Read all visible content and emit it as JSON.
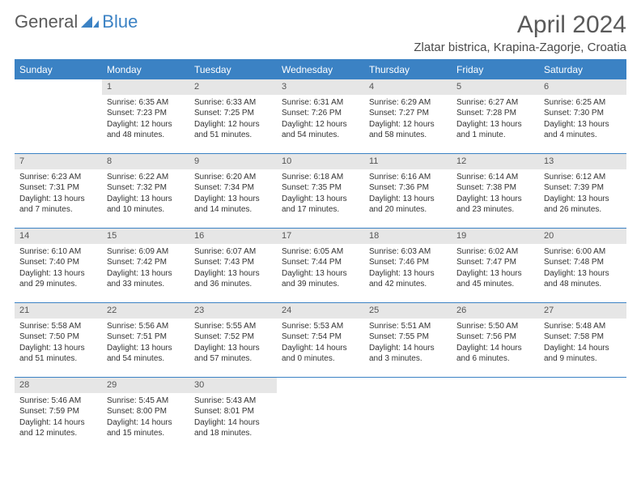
{
  "logo": {
    "part1": "General",
    "part2": "Blue"
  },
  "title": "April 2024",
  "location": "Zlatar bistrica, Krapina-Zagorje, Croatia",
  "colors": {
    "header_bg": "#3b82c4",
    "header_text": "#ffffff",
    "daynum_bg": "#e6e6e6",
    "border": "#3b82c4",
    "body_text": "#333333",
    "logo_gray": "#5a5a5a"
  },
  "weekdays": [
    "Sunday",
    "Monday",
    "Tuesday",
    "Wednesday",
    "Thursday",
    "Friday",
    "Saturday"
  ],
  "start_offset": 1,
  "days": [
    {
      "n": 1,
      "sunrise": "6:35 AM",
      "sunset": "7:23 PM",
      "daylight": "12 hours and 48 minutes."
    },
    {
      "n": 2,
      "sunrise": "6:33 AM",
      "sunset": "7:25 PM",
      "daylight": "12 hours and 51 minutes."
    },
    {
      "n": 3,
      "sunrise": "6:31 AM",
      "sunset": "7:26 PM",
      "daylight": "12 hours and 54 minutes."
    },
    {
      "n": 4,
      "sunrise": "6:29 AM",
      "sunset": "7:27 PM",
      "daylight": "12 hours and 58 minutes."
    },
    {
      "n": 5,
      "sunrise": "6:27 AM",
      "sunset": "7:28 PM",
      "daylight": "13 hours and 1 minute."
    },
    {
      "n": 6,
      "sunrise": "6:25 AM",
      "sunset": "7:30 PM",
      "daylight": "13 hours and 4 minutes."
    },
    {
      "n": 7,
      "sunrise": "6:23 AM",
      "sunset": "7:31 PM",
      "daylight": "13 hours and 7 minutes."
    },
    {
      "n": 8,
      "sunrise": "6:22 AM",
      "sunset": "7:32 PM",
      "daylight": "13 hours and 10 minutes."
    },
    {
      "n": 9,
      "sunrise": "6:20 AM",
      "sunset": "7:34 PM",
      "daylight": "13 hours and 14 minutes."
    },
    {
      "n": 10,
      "sunrise": "6:18 AM",
      "sunset": "7:35 PM",
      "daylight": "13 hours and 17 minutes."
    },
    {
      "n": 11,
      "sunrise": "6:16 AM",
      "sunset": "7:36 PM",
      "daylight": "13 hours and 20 minutes."
    },
    {
      "n": 12,
      "sunrise": "6:14 AM",
      "sunset": "7:38 PM",
      "daylight": "13 hours and 23 minutes."
    },
    {
      "n": 13,
      "sunrise": "6:12 AM",
      "sunset": "7:39 PM",
      "daylight": "13 hours and 26 minutes."
    },
    {
      "n": 14,
      "sunrise": "6:10 AM",
      "sunset": "7:40 PM",
      "daylight": "13 hours and 29 minutes."
    },
    {
      "n": 15,
      "sunrise": "6:09 AM",
      "sunset": "7:42 PM",
      "daylight": "13 hours and 33 minutes."
    },
    {
      "n": 16,
      "sunrise": "6:07 AM",
      "sunset": "7:43 PM",
      "daylight": "13 hours and 36 minutes."
    },
    {
      "n": 17,
      "sunrise": "6:05 AM",
      "sunset": "7:44 PM",
      "daylight": "13 hours and 39 minutes."
    },
    {
      "n": 18,
      "sunrise": "6:03 AM",
      "sunset": "7:46 PM",
      "daylight": "13 hours and 42 minutes."
    },
    {
      "n": 19,
      "sunrise": "6:02 AM",
      "sunset": "7:47 PM",
      "daylight": "13 hours and 45 minutes."
    },
    {
      "n": 20,
      "sunrise": "6:00 AM",
      "sunset": "7:48 PM",
      "daylight": "13 hours and 48 minutes."
    },
    {
      "n": 21,
      "sunrise": "5:58 AM",
      "sunset": "7:50 PM",
      "daylight": "13 hours and 51 minutes."
    },
    {
      "n": 22,
      "sunrise": "5:56 AM",
      "sunset": "7:51 PM",
      "daylight": "13 hours and 54 minutes."
    },
    {
      "n": 23,
      "sunrise": "5:55 AM",
      "sunset": "7:52 PM",
      "daylight": "13 hours and 57 minutes."
    },
    {
      "n": 24,
      "sunrise": "5:53 AM",
      "sunset": "7:54 PM",
      "daylight": "14 hours and 0 minutes."
    },
    {
      "n": 25,
      "sunrise": "5:51 AM",
      "sunset": "7:55 PM",
      "daylight": "14 hours and 3 minutes."
    },
    {
      "n": 26,
      "sunrise": "5:50 AM",
      "sunset": "7:56 PM",
      "daylight": "14 hours and 6 minutes."
    },
    {
      "n": 27,
      "sunrise": "5:48 AM",
      "sunset": "7:58 PM",
      "daylight": "14 hours and 9 minutes."
    },
    {
      "n": 28,
      "sunrise": "5:46 AM",
      "sunset": "7:59 PM",
      "daylight": "14 hours and 12 minutes."
    },
    {
      "n": 29,
      "sunrise": "5:45 AM",
      "sunset": "8:00 PM",
      "daylight": "14 hours and 15 minutes."
    },
    {
      "n": 30,
      "sunrise": "5:43 AM",
      "sunset": "8:01 PM",
      "daylight": "14 hours and 18 minutes."
    }
  ],
  "labels": {
    "sunrise": "Sunrise:",
    "sunset": "Sunset:",
    "daylight": "Daylight:"
  }
}
